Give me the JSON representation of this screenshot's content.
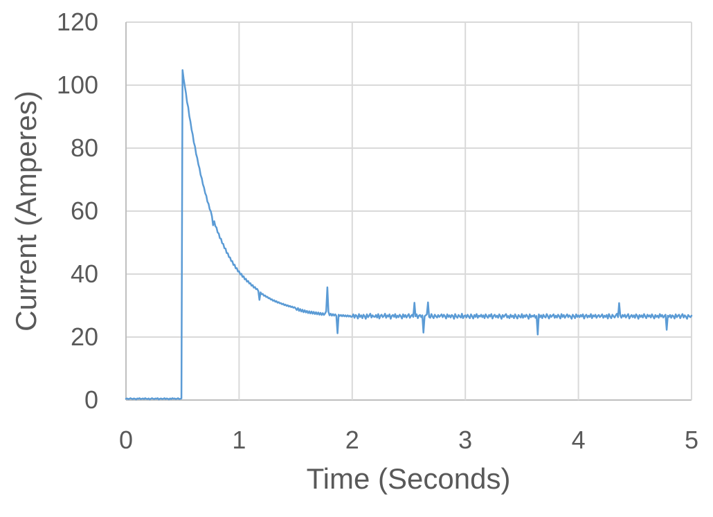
{
  "chart_data": {
    "type": "line",
    "title": "",
    "xlabel": "Time (Seconds)",
    "ylabel": "Current (Amperes)",
    "xlim": [
      0,
      5
    ],
    "ylim": [
      0,
      120
    ],
    "xticks": [
      0,
      1,
      2,
      3,
      4,
      5
    ],
    "yticks": [
      0,
      20,
      40,
      60,
      80,
      100,
      120
    ],
    "grid": true,
    "legend_position": "none",
    "colors": {
      "series": "#5B9BD5",
      "grid": "#D9D9D9",
      "axis": "#BFBFBF",
      "text": "#595959",
      "background": "#FFFFFF"
    },
    "series": [
      {
        "name": "Current",
        "color": "#5B9BD5",
        "x_start": 0,
        "x_step": 0.01,
        "values": [
          0.4,
          0.5,
          0.3,
          0.4,
          0.6,
          0.4,
          0.3,
          0.5,
          0.4,
          0.2,
          0.5,
          0.4,
          0.6,
          0.3,
          0.4,
          0.5,
          0.3,
          0.6,
          0.4,
          0.3,
          0.5,
          0.2,
          0.4,
          0.6,
          0.4,
          0.3,
          0.5,
          0.4,
          0.6,
          0.2,
          0.4,
          0.5,
          0.3,
          0.4,
          0.6,
          0.3,
          0.5,
          0.4,
          0.2,
          0.5,
          0.3,
          0.6,
          0.4,
          0.5,
          0.3,
          0.4,
          0.6,
          0.3,
          0.4,
          0.5,
          104.8,
          102.0,
          99.6,
          97.5,
          94.6,
          93.0,
          90.1,
          88.4,
          85.8,
          84.3,
          81.8,
          80.5,
          78.1,
          76.9,
          74.8,
          73.6,
          71.5,
          70.4,
          68.5,
          67.5,
          65.7,
          64.9,
          63.0,
          62.3,
          60.6,
          59.9,
          58.3,
          55.5,
          56.8,
          55.2,
          54.8,
          53.2,
          52.9,
          51.4,
          51.2,
          49.8,
          49.6,
          48.2,
          48.1,
          46.7,
          46.6,
          45.4,
          45.3,
          44.1,
          44.1,
          42.9,
          43.0,
          41.8,
          41.9,
          40.8,
          40.9,
          39.9,
          40.1,
          39.1,
          39.3,
          38.3,
          38.5,
          37.6,
          37.8,
          37.0,
          37.1,
          36.3,
          36.5,
          35.7,
          35.9,
          35.2,
          35.3,
          34.6,
          31.8,
          34.2,
          33.6,
          33.7,
          33.1,
          33.2,
          32.7,
          32.8,
          32.3,
          32.4,
          31.9,
          32.0,
          31.5,
          31.7,
          31.2,
          31.4,
          30.9,
          31.1,
          30.7,
          30.8,
          30.4,
          30.6,
          30.1,
          30.3,
          29.9,
          30.1,
          29.7,
          29.9,
          29.5,
          29.7,
          29.3,
          29.5,
          29.1,
          28.6,
          29.2,
          28.3,
          28.9,
          28.1,
          28.7,
          27.9,
          28.5,
          27.8,
          28.3,
          27.6,
          28.2,
          27.5,
          28.1,
          27.4,
          28.0,
          27.3,
          27.9,
          27.2,
          27.8,
          27.1,
          27.7,
          27.0,
          27.6,
          27.0,
          27.5,
          28.2,
          35.8,
          28.0,
          26.9,
          27.4,
          26.8,
          27.3,
          26.8,
          27.2,
          26.7,
          21.2,
          27.1,
          26.7,
          27.0,
          26.6,
          27.0,
          26.6,
          26.9,
          26.5,
          26.9,
          26.5,
          26.8,
          26.4,
          26.5,
          27.2,
          26.1,
          27.0,
          26.7,
          25.9,
          27.3,
          26.4,
          26.9,
          26.0,
          27.1,
          26.6,
          25.8,
          27.2,
          26.3,
          26.8,
          27.4,
          26.2,
          26.9,
          26.5,
          26.4,
          27.0,
          26.2,
          27.3,
          25.9,
          26.8,
          27.1,
          26.3,
          26.7,
          27.4,
          26.1,
          26.9,
          26.5,
          27.2,
          25.8,
          26.7,
          27.0,
          26.4,
          27.3,
          26.1,
          26.8,
          26.3,
          27.1,
          26.6,
          25.9,
          27.2,
          26.4,
          27.0,
          26.2,
          26.8,
          27.3,
          26.1,
          26.7,
          27.1,
          26.4,
          30.9,
          26.6,
          27.2,
          26.0,
          26.8,
          27.0,
          26.3,
          26.9,
          21.4,
          26.6,
          26.9,
          27.2,
          31.0,
          26.4,
          26.1,
          27.3,
          26.5,
          26.0,
          27.1,
          26.6,
          26.2,
          27.0,
          26.4,
          26.8,
          27.2,
          26.3,
          27.1,
          26.6,
          25.9,
          27.2,
          26.4,
          26.9,
          26.2,
          27.0,
          26.7,
          25.8,
          27.3,
          26.5,
          26.1,
          27.0,
          26.6,
          26.2,
          27.4,
          26.0,
          26.7,
          26.9,
          26.2,
          27.1,
          26.5,
          26.0,
          27.2,
          26.6,
          25.9,
          27.0,
          26.4,
          27.3,
          26.1,
          26.8,
          26.5,
          27.1,
          26.3,
          26.9,
          26.0,
          27.2,
          26.6,
          26.1,
          27.0,
          26.5,
          27.3,
          25.9,
          26.7,
          27.1,
          26.3,
          26.8,
          26.1,
          27.2,
          26.6,
          25.8,
          27.0,
          26.4,
          26.9,
          27.3,
          26.2,
          26.7,
          26.0,
          27.1,
          26.4,
          26.8,
          26.0,
          27.2,
          26.5,
          25.9,
          27.0,
          26.6,
          26.2,
          27.3,
          26.1,
          26.9,
          26.4,
          27.1,
          26.6,
          25.8,
          27.2,
          26.3,
          26.8,
          26.5,
          27.0,
          26.1,
          26.7,
          20.8,
          27.2,
          26.3,
          26.9,
          26.0,
          27.1,
          26.5,
          26.2,
          27.3,
          26.6,
          25.9,
          27.0,
          26.4,
          26.8,
          27.2,
          26.1,
          26.8,
          26.2,
          27.1,
          26.6,
          25.9,
          27.3,
          26.4,
          27.0,
          26.1,
          26.7,
          27.2,
          26.3,
          26.9,
          26.5,
          25.8,
          27.1,
          26.6,
          26.0,
          27.2,
          26.4,
          26.9,
          26.3,
          27.0,
          26.5,
          27.2,
          25.9,
          26.7,
          27.1,
          26.2,
          26.8,
          26.4,
          27.3,
          26.0,
          26.9,
          26.5,
          27.1,
          26.1,
          26.7,
          27.0,
          26.3,
          26.7,
          27.2,
          26.1,
          26.8,
          26.4,
          27.0,
          25.9,
          27.3,
          26.5,
          26.0,
          27.1,
          26.6,
          26.2,
          26.9,
          27.4,
          26.3,
          30.8,
          26.8,
          26.1,
          27.0,
          26.5,
          27.1,
          26.2,
          26.8,
          27.3,
          25.9,
          26.6,
          27.0,
          26.3,
          26.9,
          26.1,
          27.2,
          26.7,
          25.8,
          27.0,
          26.4,
          26.9,
          26.2,
          27.3,
          26.6,
          26.0,
          27.1,
          26.5,
          26.9,
          26.2,
          27.2,
          26.6,
          25.9,
          27.0,
          26.4,
          26.8,
          26.1,
          27.3,
          26.5,
          27.0,
          26.2,
          26.7,
          27.1,
          22.3,
          26.8,
          26.4,
          27.0,
          26.1,
          26.9,
          26.6,
          25.9,
          27.2,
          26.3,
          26.8,
          27.1,
          26.0,
          26.7,
          27.3,
          26.2,
          26.9,
          26.5,
          25.8,
          27.0,
          26.6,
          26.3,
          26.8
        ]
      }
    ]
  }
}
